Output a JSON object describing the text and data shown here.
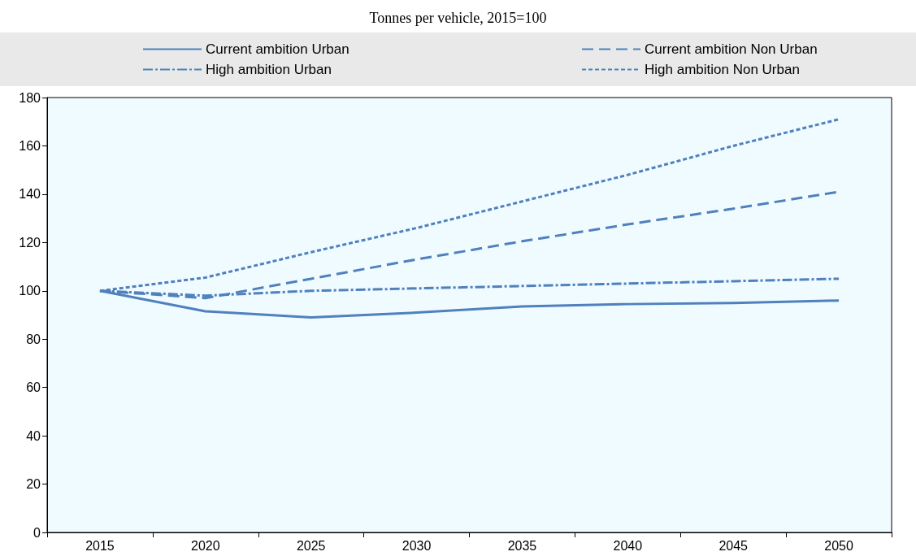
{
  "chart_data": {
    "type": "line",
    "title": "Tonnes per vehicle, 2015=100",
    "categories": [
      "2015",
      "2020",
      "2025",
      "2030",
      "2035",
      "2040",
      "2045",
      "2050"
    ],
    "series": [
      {
        "name": "Current ambition Urban",
        "color": "#4f81bd",
        "line_style": "solid",
        "values": [
          100,
          91.5,
          89,
          91,
          93.5,
          94.5,
          95,
          96
        ]
      },
      {
        "name": "Current ambition Non Urban",
        "color": "#4f81bd",
        "line_style": "dashed",
        "values": [
          100,
          97,
          105,
          113,
          120.5,
          127.5,
          134,
          141
        ]
      },
      {
        "name": "High ambition Urban",
        "color": "#4f81bd",
        "line_style": "dashdot",
        "values": [
          100,
          98,
          100,
          101,
          102,
          103,
          104,
          105
        ]
      },
      {
        "name": "High ambition Non Urban",
        "color": "#4f81bd",
        "line_style": "dotted",
        "values": [
          100,
          105.5,
          116,
          126,
          137,
          148,
          160,
          171
        ]
      }
    ],
    "ylim": [
      0,
      180
    ],
    "yticks": [
      0,
      20,
      40,
      60,
      80,
      100,
      120,
      140,
      160,
      180
    ],
    "legend": "top",
    "marker": "none"
  }
}
